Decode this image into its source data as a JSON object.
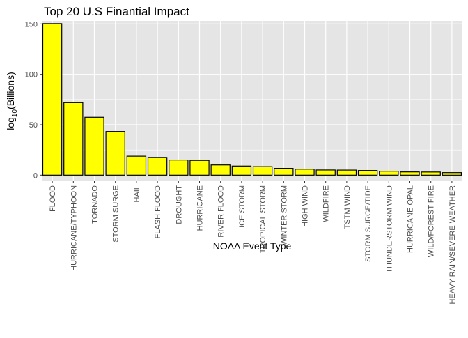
{
  "chart_data": {
    "type": "bar",
    "title": "Top 20 U.S Finantial Impact",
    "xlabel": "NOAA Event Type",
    "ylabel": {
      "prefix": "log",
      "subscript": "10",
      "suffix": "(Billions)"
    },
    "ylim": [
      -6,
      153
    ],
    "yticks": [
      0,
      50,
      100,
      150
    ],
    "grid": true,
    "categories": [
      "FLOOD",
      "HURRICANE/TYPHOON",
      "TORNADO",
      "STORM SURGE",
      "HAIL",
      "FLASH FLOOD",
      "DROUGHT",
      "HURRICANE",
      "RIVER FLOOD",
      "ICE STORM",
      "TROPICAL STORM",
      "WINTER STORM",
      "HIGH WIND",
      "WILDFIRE",
      "TSTM WIND",
      "STORM SURGE/TIDE",
      "THUNDERSTORM WIND",
      "HURRICANE OPAL",
      "WILD/FOREST FIRE",
      "HEAVY RAIN/SEVERE WEATHER"
    ],
    "values": [
      150.3,
      71.9,
      57.4,
      43.3,
      18.8,
      17.6,
      15.0,
      14.6,
      10.1,
      9.0,
      8.4,
      6.7,
      5.9,
      5.1,
      5.0,
      4.6,
      3.9,
      3.2,
      3.1,
      2.5
    ],
    "colors": {
      "bar_fill": "#ffff00",
      "bar_stroke": "#000000",
      "panel_background": "#e5e5e5",
      "grid_major": "#ffffff"
    }
  }
}
